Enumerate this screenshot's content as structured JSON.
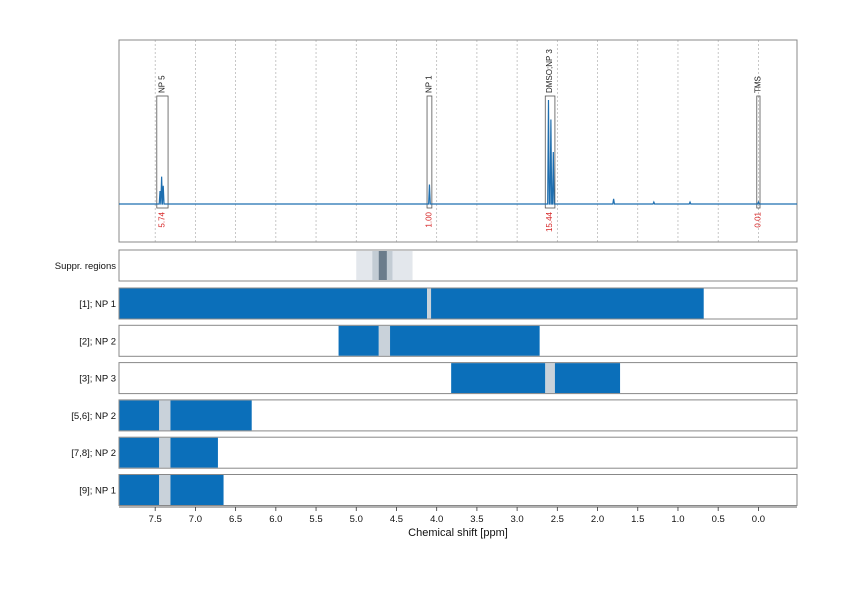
{
  "colors": {
    "bar": "#0b6fba",
    "spectrum": "#1f6fb0",
    "integral": "#d62728",
    "frame": "#888888",
    "overlap": "#c9d2da",
    "suppr_outer": "#e3e7ec",
    "suppr_mid": "#c3ccd4",
    "suppr_core": "#6b7c8b"
  },
  "chart_data": {
    "type": "nmr-spectrum-with-region-bars",
    "x_axis": {
      "label": "Chemical shift [ppm]",
      "reversed": true,
      "range": [
        7.95,
        -0.48
      ],
      "ticks": [
        7.5,
        7.0,
        6.5,
        6.0,
        5.5,
        5.0,
        4.5,
        4.0,
        3.5,
        3.0,
        2.5,
        2.0,
        1.5,
        1.0,
        0.5,
        0.0
      ],
      "tick_labels": [
        "7.5",
        "7.0",
        "6.5",
        "6.0",
        "5.5",
        "5.0",
        "4.5",
        "4.0",
        "3.5",
        "3.0",
        "2.5",
        "2.0",
        "1.5",
        "1.0",
        "0.5",
        "0.0"
      ]
    },
    "grid": {
      "vertical_dotted": true
    },
    "spectrum": {
      "baseline": 0,
      "peaks": [
        {
          "ppm": 7.42,
          "height": 0.21
        },
        {
          "ppm": 7.4,
          "height": 0.14
        },
        {
          "ppm": 7.44,
          "height": 0.1
        },
        {
          "ppm": 4.09,
          "height": 0.15
        },
        {
          "ppm": 2.61,
          "height": 0.8
        },
        {
          "ppm": 2.58,
          "height": 0.65
        },
        {
          "ppm": 2.55,
          "height": 0.4
        },
        {
          "ppm": 1.8,
          "height": 0.04
        },
        {
          "ppm": 1.3,
          "height": 0.015
        },
        {
          "ppm": 0.85,
          "height": 0.015
        },
        {
          "ppm": 0.0,
          "height": 0.015
        }
      ],
      "annotations": [
        {
          "label": "NP 5",
          "start": 7.48,
          "end": 7.34,
          "box_height": 0.93,
          "integral": "5.74"
        },
        {
          "label": "NP 1",
          "start": 4.12,
          "end": 4.06,
          "box_height": 0.93,
          "integral": "1.00"
        },
        {
          "label": "DMSO;NP 3",
          "start": 2.65,
          "end": 2.53,
          "box_height": 0.93,
          "integral": "15.44"
        },
        {
          "label": "TMS",
          "start": 0.02,
          "end": -0.02,
          "box_height": 0.93,
          "integral": "0.01"
        }
      ]
    },
    "suppression": {
      "label": "Suppr. regions",
      "layers": [
        {
          "start": 5.0,
          "end": 4.3,
          "level": "outer"
        },
        {
          "start": 4.8,
          "end": 4.55,
          "level": "mid"
        },
        {
          "start": 4.72,
          "end": 4.62,
          "level": "core"
        }
      ]
    },
    "rows": [
      {
        "label": "[1]; NP 1",
        "segments": [
          [
            7.95,
            4.12,
            "bar"
          ],
          [
            4.12,
            4.07,
            "overlap"
          ],
          [
            4.07,
            0.68,
            "bar"
          ]
        ]
      },
      {
        "label": "[2]; NP 2",
        "segments": [
          [
            5.22,
            4.72,
            "bar"
          ],
          [
            4.72,
            4.58,
            "overlap"
          ],
          [
            4.58,
            2.72,
            "bar"
          ]
        ]
      },
      {
        "label": "[3]; NP 3",
        "segments": [
          [
            3.82,
            2.65,
            "bar"
          ],
          [
            2.65,
            2.53,
            "overlap"
          ],
          [
            2.53,
            1.72,
            "bar"
          ]
        ]
      },
      {
        "label": "[5,6]; NP 2",
        "segments": [
          [
            7.95,
            7.45,
            "bar"
          ],
          [
            7.45,
            7.31,
            "overlap"
          ],
          [
            7.31,
            6.3,
            "bar"
          ]
        ]
      },
      {
        "label": "[7,8]; NP 2",
        "segments": [
          [
            7.95,
            7.45,
            "bar"
          ],
          [
            7.45,
            7.31,
            "overlap"
          ],
          [
            7.31,
            6.72,
            "bar"
          ]
        ]
      },
      {
        "label": "[9]; NP 1",
        "segments": [
          [
            7.95,
            7.45,
            "bar"
          ],
          [
            7.45,
            7.31,
            "overlap"
          ],
          [
            7.31,
            6.65,
            "bar"
          ]
        ]
      }
    ]
  }
}
